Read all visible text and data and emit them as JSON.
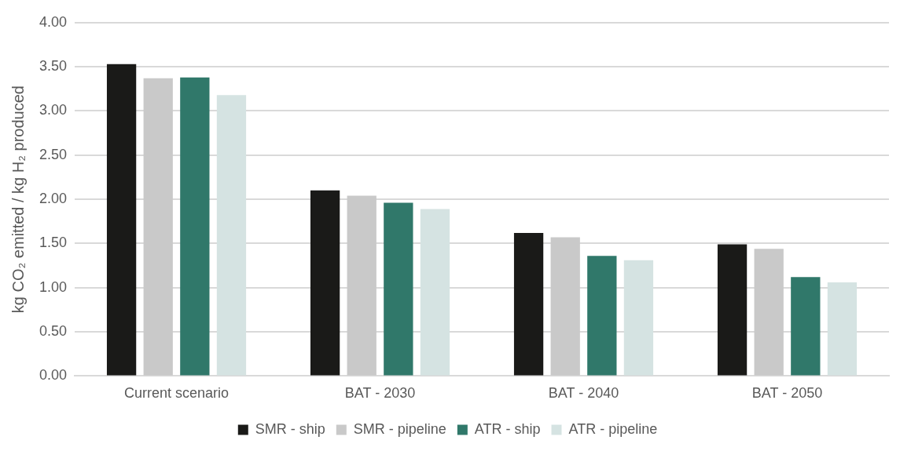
{
  "chart_data": {
    "type": "bar",
    "ylabel": "kg CO₂ emitted / kg H₂ produced",
    "categories": [
      "Current scenario",
      "BAT - 2030",
      "BAT - 2040",
      "BAT - 2050"
    ],
    "series": [
      {
        "name": "SMR - ship",
        "color": "#1a1a18",
        "values": [
          3.53,
          2.1,
          1.62,
          1.49
        ]
      },
      {
        "name": "SMR - pipeline",
        "color": "#c9c9c9",
        "values": [
          3.37,
          2.04,
          1.57,
          1.44
        ]
      },
      {
        "name": "ATR - ship",
        "color": "#30786a",
        "values": [
          3.38,
          1.96,
          1.36,
          1.12
        ]
      },
      {
        "name": "ATR - pipeline",
        "color": "#d5e3e2",
        "values": [
          3.18,
          1.89,
          1.31,
          1.06
        ]
      }
    ],
    "ylim": [
      0,
      4
    ],
    "yticks": [
      {
        "value": 0,
        "label": "0.00"
      },
      {
        "value": 0.5,
        "label": "0.50"
      },
      {
        "value": 1,
        "label": "1.00"
      },
      {
        "value": 1.5,
        "label": "1.50"
      },
      {
        "value": 2,
        "label": "2.00"
      },
      {
        "value": 2.5,
        "label": "2.50"
      },
      {
        "value": 3,
        "label": "3.00"
      },
      {
        "value": 3.5,
        "label": "3.50"
      },
      {
        "value": 4,
        "label": "4.00"
      }
    ],
    "grid": "y",
    "legend": "bottom"
  }
}
